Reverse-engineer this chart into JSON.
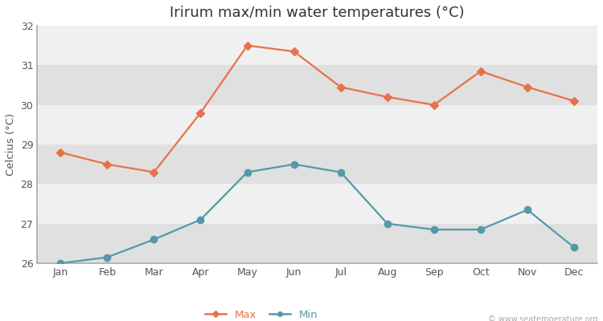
{
  "title": "Irirum max/min water temperatures (°C)",
  "ylabel": "Celcius (°C)",
  "months": [
    "Jan",
    "Feb",
    "Mar",
    "Apr",
    "May",
    "Jun",
    "Jul",
    "Aug",
    "Sep",
    "Oct",
    "Nov",
    "Dec"
  ],
  "max_temps": [
    28.8,
    28.5,
    28.3,
    29.8,
    31.5,
    31.35,
    30.45,
    30.2,
    30.0,
    30.85,
    30.45,
    30.1
  ],
  "min_temps": [
    26.0,
    26.15,
    26.6,
    27.1,
    28.3,
    28.5,
    28.3,
    27.0,
    26.85,
    26.85,
    27.35,
    26.4
  ],
  "max_color": "#E8714A",
  "min_color": "#5499A8",
  "fig_bg_color": "#FFFFFF",
  "band_light": "#F0F0F0",
  "band_dark": "#E0E0E0",
  "spine_color": "#AAAAAA",
  "ylim": [
    26,
    32
  ],
  "yticks": [
    26,
    27,
    28,
    29,
    30,
    31,
    32
  ],
  "watermark": "© www.seatemperature.org",
  "title_fontsize": 13,
  "label_fontsize": 9.5,
  "tick_fontsize": 9,
  "legend_labels": [
    "Max",
    "Min"
  ]
}
